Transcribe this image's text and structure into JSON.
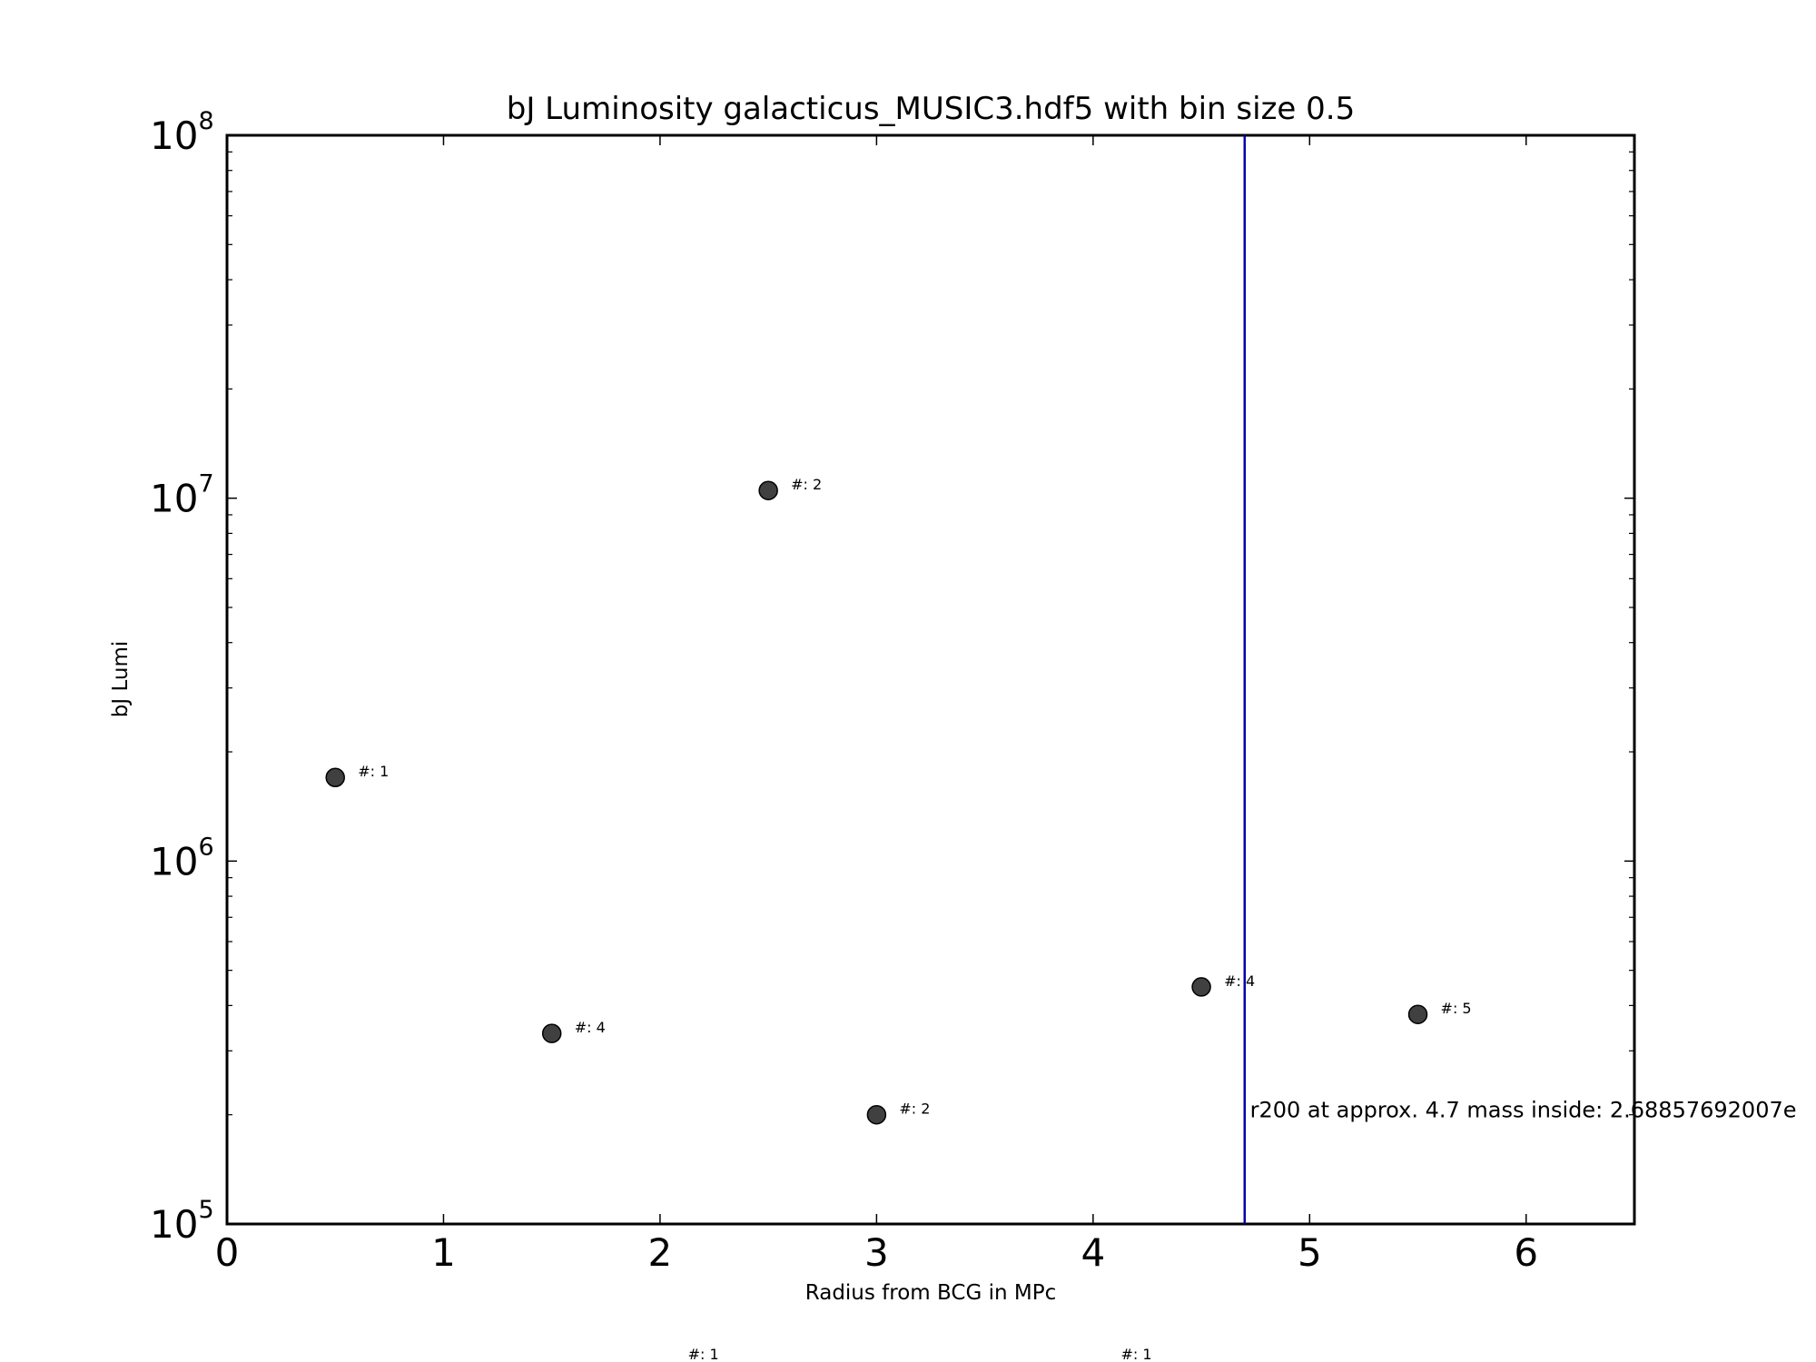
{
  "chart_data": {
    "type": "scatter",
    "title": "bJ Luminosity galacticus_MUSIC3.hdf5 with bin size 0.5",
    "xlabel": "Radius from BCG in MPc",
    "ylabel": "bJ Lumi",
    "xlim": [
      0,
      6.5
    ],
    "ylim": [
      100000,
      100000000
    ],
    "yscale": "log",
    "grid": false,
    "x_ticks": [
      {
        "value": 0,
        "label": "0"
      },
      {
        "value": 1,
        "label": "1"
      },
      {
        "value": 2,
        "label": "2"
      },
      {
        "value": 3,
        "label": "3"
      },
      {
        "value": 4,
        "label": "4"
      },
      {
        "value": 5,
        "label": "5"
      },
      {
        "value": 6,
        "label": "6"
      }
    ],
    "y_ticks": [
      {
        "value": 100000,
        "base": "10",
        "exp": "5"
      },
      {
        "value": 1000000,
        "base": "10",
        "exp": "6"
      },
      {
        "value": 10000000,
        "base": "10",
        "exp": "7"
      },
      {
        "value": 100000000,
        "base": "10",
        "exp": "8"
      }
    ],
    "points": [
      {
        "x": 0.5,
        "y": 1700000,
        "label": "#: 1"
      },
      {
        "x": 1.5,
        "y": 335000,
        "label": "#: 4"
      },
      {
        "x": 2.5,
        "y": 10500000,
        "label": "#: 2"
      },
      {
        "x": 3.0,
        "y": 200000,
        "label": "#: 2"
      },
      {
        "x": 4.5,
        "y": 450000,
        "label": "#: 4"
      },
      {
        "x": 5.5,
        "y": 378000,
        "label": "#: 5"
      }
    ],
    "outside_labels": [
      {
        "x": 2.2,
        "label": "#: 1"
      },
      {
        "x": 4.2,
        "label": "#: 1"
      }
    ],
    "vline": {
      "x": 4.7,
      "color": "#0000aa"
    },
    "annotation": {
      "x": 4.8,
      "y": 205000,
      "text": "r200 at approx. 4.7 mass inside: 2.68857692007e"
    },
    "marker_color": "#404040"
  }
}
